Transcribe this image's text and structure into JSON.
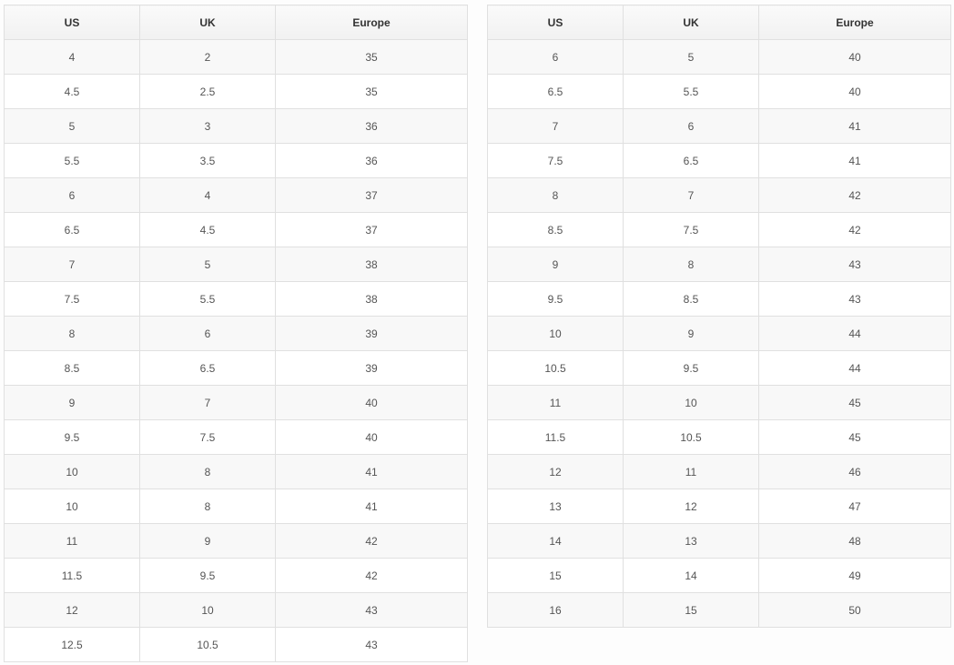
{
  "headers": [
    "US",
    "UK",
    "Europe"
  ],
  "left_table": [
    [
      "4",
      "2",
      "35"
    ],
    [
      "4.5",
      "2.5",
      "35"
    ],
    [
      "5",
      "3",
      "36"
    ],
    [
      "5.5",
      "3.5",
      "36"
    ],
    [
      "6",
      "4",
      "37"
    ],
    [
      "6.5",
      "4.5",
      "37"
    ],
    [
      "7",
      "5",
      "38"
    ],
    [
      "7.5",
      "5.5",
      "38"
    ],
    [
      "8",
      "6",
      "39"
    ],
    [
      "8.5",
      "6.5",
      "39"
    ],
    [
      "9",
      "7",
      "40"
    ],
    [
      "9.5",
      "7.5",
      "40"
    ],
    [
      "10",
      "8",
      "41"
    ],
    [
      "10",
      "8",
      "41"
    ],
    [
      "11",
      "9",
      "42"
    ],
    [
      "11.5",
      "9.5",
      "42"
    ],
    [
      "12",
      "10",
      "43"
    ],
    [
      "12.5",
      "10.5",
      "43"
    ]
  ],
  "right_table": [
    [
      "6",
      "5",
      "40"
    ],
    [
      "6.5",
      "5.5",
      "40"
    ],
    [
      "7",
      "6",
      "41"
    ],
    [
      "7.5",
      "6.5",
      "41"
    ],
    [
      "8",
      "7",
      "42"
    ],
    [
      "8.5",
      "7.5",
      "42"
    ],
    [
      "9",
      "8",
      "43"
    ],
    [
      "9.5",
      "8.5",
      "43"
    ],
    [
      "10",
      "9",
      "44"
    ],
    [
      "10.5",
      "9.5",
      "44"
    ],
    [
      "11",
      "10",
      "45"
    ],
    [
      "11.5",
      "10.5",
      "45"
    ],
    [
      "12",
      "11",
      "46"
    ],
    [
      "13",
      "12",
      "47"
    ],
    [
      "14",
      "13",
      "48"
    ],
    [
      "15",
      "14",
      "49"
    ],
    [
      "16",
      "15",
      "50"
    ]
  ]
}
